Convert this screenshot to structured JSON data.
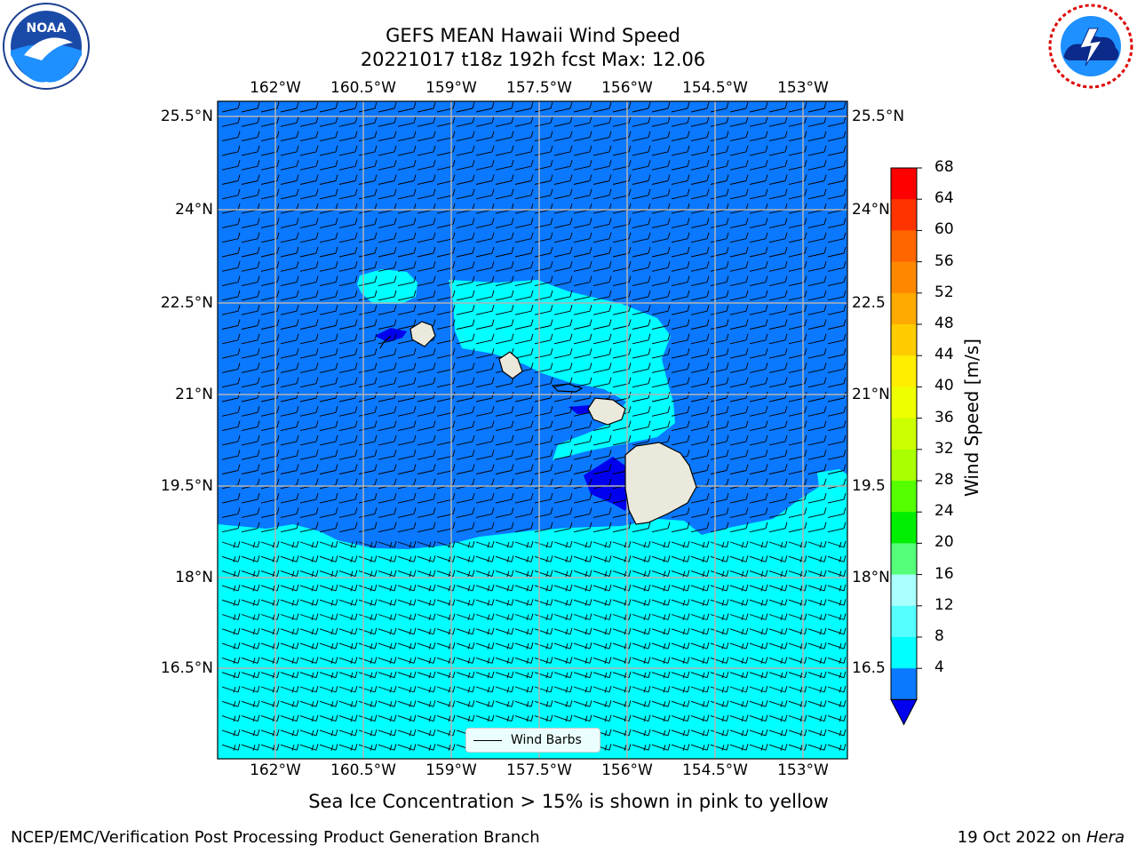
{
  "title": {
    "line1": "GEFS MEAN Hawaii Wind Speed",
    "line2": "20221017 t18z 192h fcst   Max: 12.06"
  },
  "logos": {
    "noaa": {
      "text": "NOAA",
      "ring": "NATIONAL OCEANIC AND ATMOSPHERIC ADMINISTRATION · U.S. DEPARTMENT OF COMMERCE"
    },
    "nws": {
      "ring": "NATIONAL WEATHER SERVICE"
    }
  },
  "map": {
    "lon_labels": [
      "162°W",
      "160.5°W",
      "159°W",
      "157.5°W",
      "156°W",
      "154.5°W",
      "153°W"
    ],
    "lat_labels_left": [
      "25.5°N",
      "24°N",
      "22.5°N",
      "21°N",
      "19.5°N",
      "18°N",
      "16.5°N"
    ],
    "lat_labels_right": [
      "25.5°N",
      "24°N",
      "22.5",
      "21°N",
      "19.5",
      "18°N",
      "16.5"
    ],
    "legend_label": "Wind Barbs",
    "colors": {
      "band_4_8": "#0a78ff",
      "band_8_12": "#00ffff",
      "band_below_4": "#0000ee",
      "land": "#ebe9db",
      "grid": "#b3b3b3"
    }
  },
  "colorbar": {
    "label": "Wind Speed [m/s]",
    "ticks": [
      "68",
      "64",
      "60",
      "56",
      "52",
      "48",
      "44",
      "40",
      "36",
      "32",
      "28",
      "24",
      "20",
      "16",
      "12",
      "8",
      "4"
    ],
    "colors_top_to_bottom": [
      "#ff0000",
      "#ff3300",
      "#ff6600",
      "#ff8800",
      "#ffaa00",
      "#ffcc00",
      "#ffee00",
      "#eeff00",
      "#ccff00",
      "#aaff00",
      "#55ff00",
      "#00ee00",
      "#55ff77",
      "#aaffff",
      "#55ffff",
      "#00ffff",
      "#0a78ff"
    ],
    "extend_color": "#0000ee"
  },
  "caption": "Sea Ice Concentration > 15% is shown in pink to yellow",
  "footer": {
    "left": "NCEP/EMC/Verification Post Processing Product Generation Branch",
    "right_prefix": "19 Oct 2022 on ",
    "right_host": "Hera"
  }
}
